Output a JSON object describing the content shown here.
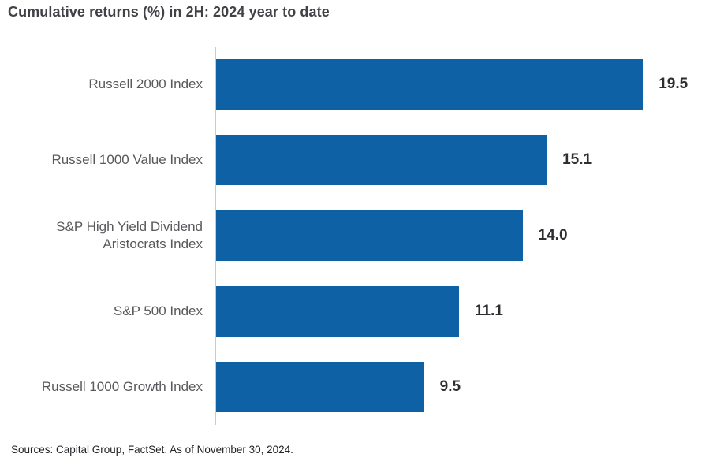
{
  "chart_data": {
    "type": "bar",
    "orientation": "horizontal",
    "title": "Cumulative returns (%) in 2H: 2024 year to date",
    "categories": [
      "Russell 2000 Index",
      "Russell 1000 Value Index",
      "S&P High Yield Dividend Aristocrats Index",
      "S&P 500 Index",
      "Russell 1000 Growth Index"
    ],
    "values": [
      19.5,
      15.1,
      14.0,
      11.1,
      9.5
    ],
    "value_labels": [
      "19.5",
      "15.1",
      "14.0",
      "11.1",
      "9.5"
    ],
    "xlabel": "",
    "ylabel": "",
    "xlim": [
      0,
      22.7
    ],
    "grid": false,
    "legend": false,
    "bar_color": "#0d61a4",
    "axis_color": "#c9cacb"
  },
  "footer": {
    "source": "Sources: Capital Group, FactSet. As of November 30, 2024."
  }
}
